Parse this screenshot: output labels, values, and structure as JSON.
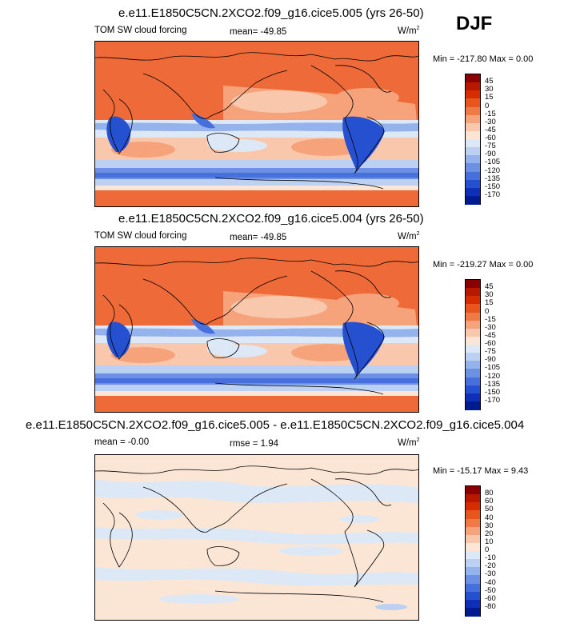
{
  "season": "DJF",
  "panels": [
    {
      "title": "e.e11.E1850C5CN.2XCO2.f09_g16.cice5.005 (yrs 26-50)",
      "left_label": "TOM SW cloud forcing",
      "mid_label": "mean= -49.85",
      "units_base": "W/m",
      "units_sup": "2",
      "minmax": "Min = -217.80 Max =   0.00",
      "colorbar_levels": [
        "45",
        "30",
        "15",
        "0",
        "-15",
        "-30",
        "-45",
        "-60",
        "-75",
        "-90",
        "-105",
        "-120",
        "-135",
        "-150",
        "-170"
      ]
    },
    {
      "title": "e.e11.E1850C5CN.2XCO2.f09_g16.cice5.004 (yrs 26-50)",
      "left_label": "TOM SW cloud forcing",
      "mid_label": "mean= -49.85",
      "units_base": "W/m",
      "units_sup": "2",
      "minmax": "Min = -219.27 Max =   0.00",
      "colorbar_levels": [
        "45",
        "30",
        "15",
        "0",
        "-15",
        "-30",
        "-45",
        "-60",
        "-75",
        "-90",
        "-105",
        "-120",
        "-135",
        "-150",
        "-170"
      ]
    },
    {
      "title": "e.e11.E1850C5CN.2XCO2.f09_g16.cice5.005 - e.e11.E1850C5CN.2XCO2.f09_g16.cice5.004",
      "left_label": "mean = -0.00",
      "mid_label": "rmse =  1.94",
      "units_base": "W/m",
      "units_sup": "2",
      "minmax": "Min = -15.17 Max =  9.43",
      "colorbar_levels": [
        "80",
        "60",
        "50",
        "40",
        "30",
        "20",
        "10",
        "0",
        "-10",
        "-20",
        "-30",
        "-40",
        "-50",
        "-60",
        "-80"
      ]
    }
  ],
  "colorbar_colors": [
    "#8b0000",
    "#b81800",
    "#d62d00",
    "#e8561e",
    "#f07a45",
    "#f6a37c",
    "#f9c8ac",
    "#fbe6d6",
    "#dde8f6",
    "#bcd0f1",
    "#94b3ec",
    "#6c90e3",
    "#4870dd",
    "#2550d0",
    "#0f2fb8",
    "#001b8f"
  ],
  "chart_data": [
    {
      "type": "heatmap",
      "title": "e.e11.E1850C5CN.2XCO2.f09_g16.cice5.005 (yrs 26-50)",
      "subtitle": "TOM SW cloud forcing",
      "units": "W/m2",
      "mean": -49.85,
      "min": -217.8,
      "max": 0.0,
      "levels": [
        45,
        30,
        15,
        0,
        -15,
        -30,
        -45,
        -60,
        -75,
        -90,
        -105,
        -120,
        -135,
        -150,
        -170
      ]
    },
    {
      "type": "heatmap",
      "title": "e.e11.E1850C5CN.2XCO2.f09_g16.cice5.004 (yrs 26-50)",
      "subtitle": "TOM SW cloud forcing",
      "units": "W/m2",
      "mean": -49.85,
      "min": -219.27,
      "max": 0.0,
      "levels": [
        45,
        30,
        15,
        0,
        -15,
        -30,
        -45,
        -60,
        -75,
        -90,
        -105,
        -120,
        -135,
        -150,
        -170
      ]
    },
    {
      "type": "heatmap",
      "title": "e.e11.E1850C5CN.2XCO2.f09_g16.cice5.005 - e.e11.E1850C5CN.2XCO2.f09_g16.cice5.004",
      "units": "W/m2",
      "mean": -0.0,
      "rmse": 1.94,
      "min": -15.17,
      "max": 9.43,
      "levels": [
        80,
        60,
        50,
        40,
        30,
        20,
        10,
        0,
        -10,
        -20,
        -30,
        -40,
        -50,
        -60,
        -80
      ]
    }
  ]
}
